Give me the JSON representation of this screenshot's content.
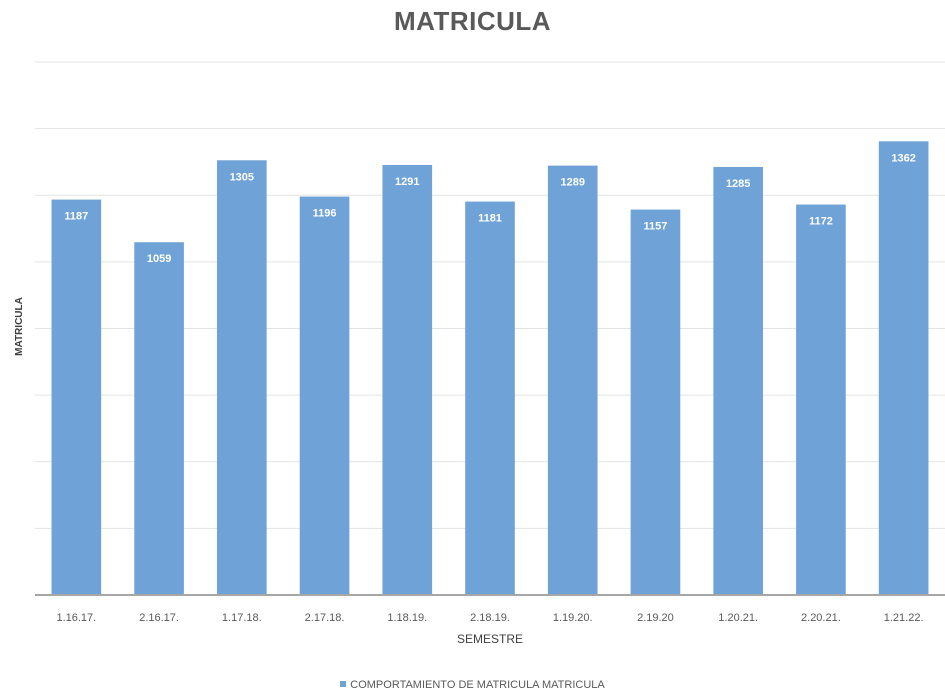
{
  "chart_data": {
    "type": "bar",
    "title": "MATRICULA",
    "xlabel": "SEMESTRE",
    "ylabel": "MATRICULA",
    "categories": [
      "1.16.17.",
      "2.16.17.",
      "1.17.18.",
      "2.17.18.",
      "1.18.19.",
      "2.18.19.",
      "1.19.20.",
      "2.19.20",
      "1.20.21.",
      "2.20.21.",
      "1.21.22."
    ],
    "series": [
      {
        "name": "COMPORTAMIENTO DE MATRICULA MATRICULA",
        "values": [
          1187,
          1059,
          1305,
          1196,
          1291,
          1181,
          1289,
          1157,
          1285,
          1172,
          1362
        ],
        "color": "#6fa3d8"
      }
    ],
    "ylim": [
      0,
      1600
    ],
    "grid": true,
    "legend": "bottom",
    "data_labels": true
  }
}
